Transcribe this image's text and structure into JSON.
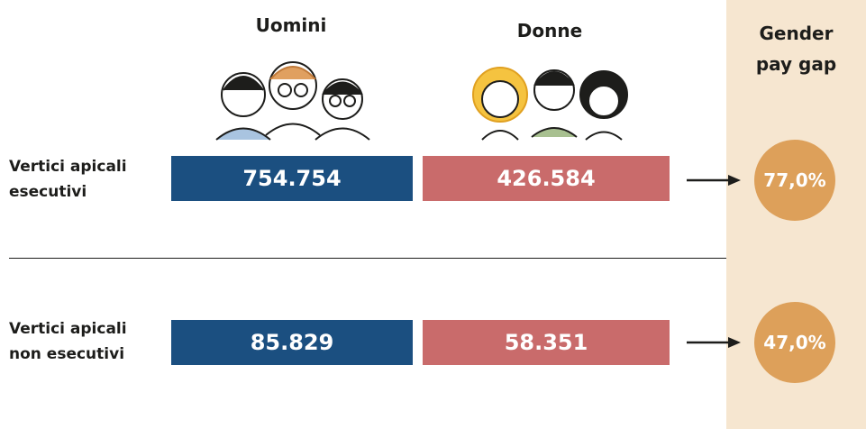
{
  "header": {
    "columns": [
      "Uomini",
      "Donne",
      "Gender pay gap"
    ]
  },
  "rows": [
    {
      "label": "Vertici apicali esecutivi",
      "uomini": "754.754",
      "donne": "426.584",
      "gap": "77,0%"
    },
    {
      "label": "Vertici apicali non esecutivi",
      "uomini": "85.829",
      "donne": "58.351",
      "gap": "47,0%"
    }
  ]
}
